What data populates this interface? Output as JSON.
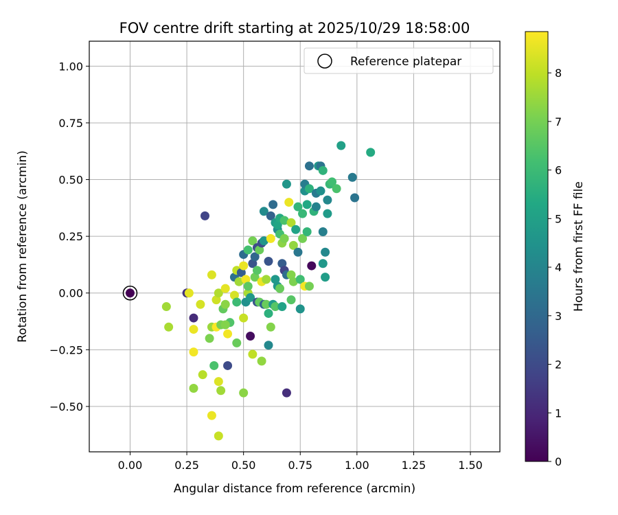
{
  "chart_data": {
    "type": "scatter",
    "title": "FOV centre drift starting at 2025/10/29 18:58:00",
    "xlabel": "Angular distance from reference (arcmin)",
    "ylabel": "Rotation from reference (arcmin)",
    "xlim": [
      -0.18,
      1.63
    ],
    "ylim": [
      -0.7,
      1.11
    ],
    "xticks": [
      0.0,
      0.25,
      0.5,
      0.75,
      1.0,
      1.25,
      1.5
    ],
    "xtick_labels": [
      "0.00",
      "0.25",
      "0.50",
      "0.75",
      "1.00",
      "1.25",
      "1.50"
    ],
    "yticks": [
      -0.5,
      -0.25,
      0.0,
      0.25,
      0.5,
      0.75,
      1.0
    ],
    "ytick_labels": [
      "−0.50",
      "−0.25",
      "0.00",
      "0.25",
      "0.50",
      "0.75",
      "1.00"
    ],
    "grid": true,
    "legend": {
      "position": "top-right",
      "entries": [
        "Reference platepar"
      ]
    },
    "reference_point": {
      "x": 0.0,
      "y": 0.0,
      "c": 0.0
    },
    "colorbar": {
      "label": "Hours from first FF file",
      "range": [
        0,
        8.85
      ],
      "ticks": [
        0,
        1,
        2,
        3,
        4,
        5,
        6,
        7,
        8
      ],
      "tick_labels": [
        "0",
        "1",
        "2",
        "3",
        "4",
        "5",
        "6",
        "7",
        "8"
      ],
      "colormap": "viridis"
    },
    "points": [
      {
        "x": 0.0,
        "y": 0.0,
        "c": 0.0
      },
      {
        "x": 0.25,
        "y": 0.0,
        "c": 1.3
      },
      {
        "x": 0.33,
        "y": 0.34,
        "c": 1.8
      },
      {
        "x": 0.28,
        "y": -0.11,
        "c": 1.1
      },
      {
        "x": 0.43,
        "y": -0.32,
        "c": 2.0
      },
      {
        "x": 0.53,
        "y": -0.19,
        "c": 0.3
      },
      {
        "x": 0.69,
        "y": -0.44,
        "c": 1.2
      },
      {
        "x": 0.8,
        "y": 0.12,
        "c": 0.2
      },
      {
        "x": 0.16,
        "y": -0.06,
        "c": 7.6
      },
      {
        "x": 0.17,
        "y": -0.15,
        "c": 7.7
      },
      {
        "x": 0.26,
        "y": 0.0,
        "c": 8.5
      },
      {
        "x": 0.28,
        "y": -0.16,
        "c": 8.6
      },
      {
        "x": 0.28,
        "y": -0.26,
        "c": 8.7
      },
      {
        "x": 0.28,
        "y": -0.42,
        "c": 7.4
      },
      {
        "x": 0.31,
        "y": -0.05,
        "c": 8.3
      },
      {
        "x": 0.32,
        "y": -0.36,
        "c": 7.9
      },
      {
        "x": 0.35,
        "y": -0.2,
        "c": 7.1
      },
      {
        "x": 0.36,
        "y": -0.15,
        "c": 7.5
      },
      {
        "x": 0.36,
        "y": 0.08,
        "c": 8.4
      },
      {
        "x": 0.36,
        "y": -0.54,
        "c": 8.6
      },
      {
        "x": 0.38,
        "y": -0.15,
        "c": 8.8
      },
      {
        "x": 0.38,
        "y": -0.03,
        "c": 8.2
      },
      {
        "x": 0.39,
        "y": 0.0,
        "c": 7.8
      },
      {
        "x": 0.39,
        "y": -0.39,
        "c": 8.4
      },
      {
        "x": 0.39,
        "y": -0.63,
        "c": 8.1
      },
      {
        "x": 0.4,
        "y": -0.43,
        "c": 7.6
      },
      {
        "x": 0.4,
        "y": -0.14,
        "c": 7.0
      },
      {
        "x": 0.41,
        "y": -0.07,
        "c": 6.7
      },
      {
        "x": 0.42,
        "y": -0.05,
        "c": 7.3
      },
      {
        "x": 0.42,
        "y": 0.02,
        "c": 8.5
      },
      {
        "x": 0.43,
        "y": -0.18,
        "c": 8.7
      },
      {
        "x": 0.44,
        "y": -0.13,
        "c": 6.4
      },
      {
        "x": 0.37,
        "y": -0.32,
        "c": 6.3
      },
      {
        "x": 0.42,
        "y": -0.14,
        "c": 7.2
      },
      {
        "x": 0.46,
        "y": 0.07,
        "c": 3.3
      },
      {
        "x": 0.46,
        "y": -0.01,
        "c": 8.3
      },
      {
        "x": 0.47,
        "y": 0.1,
        "c": 8.0
      },
      {
        "x": 0.47,
        "y": -0.04,
        "c": 6.0
      },
      {
        "x": 0.47,
        "y": -0.22,
        "c": 6.8
      },
      {
        "x": 0.48,
        "y": 0.05,
        "c": 7.6
      },
      {
        "x": 0.49,
        "y": 0.09,
        "c": 2.6
      },
      {
        "x": 0.5,
        "y": 0.12,
        "c": 8.6
      },
      {
        "x": 0.5,
        "y": -0.11,
        "c": 8.1
      },
      {
        "x": 0.5,
        "y": -0.44,
        "c": 7.3
      },
      {
        "x": 0.5,
        "y": 0.17,
        "c": 3.1
      },
      {
        "x": 0.51,
        "y": -0.04,
        "c": 4.4
      },
      {
        "x": 0.51,
        "y": 0.06,
        "c": 8.7
      },
      {
        "x": 0.52,
        "y": 0.0,
        "c": 7.7
      },
      {
        "x": 0.52,
        "y": 0.03,
        "c": 6.6
      },
      {
        "x": 0.52,
        "y": 0.19,
        "c": 6.2
      },
      {
        "x": 0.53,
        "y": -0.02,
        "c": 4.7
      },
      {
        "x": 0.54,
        "y": 0.23,
        "c": 7.0
      },
      {
        "x": 0.54,
        "y": 0.13,
        "c": 2.3
      },
      {
        "x": 0.54,
        "y": -0.27,
        "c": 8.0
      },
      {
        "x": 0.55,
        "y": 0.07,
        "c": 6.9
      },
      {
        "x": 0.55,
        "y": 0.16,
        "c": 2.9
      },
      {
        "x": 0.56,
        "y": 0.1,
        "c": 6.5
      },
      {
        "x": 0.56,
        "y": 0.2,
        "c": 2.0
      },
      {
        "x": 0.56,
        "y": -0.04,
        "c": 2.3
      },
      {
        "x": 0.57,
        "y": -0.04,
        "c": 6.7
      },
      {
        "x": 0.57,
        "y": 0.19,
        "c": 6.8
      },
      {
        "x": 0.58,
        "y": 0.22,
        "c": 2.1
      },
      {
        "x": 0.58,
        "y": -0.3,
        "c": 7.4
      },
      {
        "x": 0.58,
        "y": 0.05,
        "c": 8.6
      },
      {
        "x": 0.59,
        "y": 0.23,
        "c": 4.6
      },
      {
        "x": 0.59,
        "y": 0.36,
        "c": 4.2
      },
      {
        "x": 0.59,
        "y": -0.05,
        "c": 2.8
      },
      {
        "x": 0.6,
        "y": 0.06,
        "c": 7.6
      },
      {
        "x": 0.6,
        "y": -0.05,
        "c": 6.8
      },
      {
        "x": 0.61,
        "y": -0.23,
        "c": 4.1
      },
      {
        "x": 0.61,
        "y": 0.14,
        "c": 2.3
      },
      {
        "x": 0.61,
        "y": -0.09,
        "c": 5.6
      },
      {
        "x": 0.62,
        "y": 0.24,
        "c": 8.7
      },
      {
        "x": 0.62,
        "y": -0.15,
        "c": 7.2
      },
      {
        "x": 0.62,
        "y": 0.34,
        "c": 2.8
      },
      {
        "x": 0.63,
        "y": -0.05,
        "c": 4.8
      },
      {
        "x": 0.63,
        "y": 0.39,
        "c": 3.1
      },
      {
        "x": 0.64,
        "y": 0.06,
        "c": 4.7
      },
      {
        "x": 0.64,
        "y": -0.06,
        "c": 6.5
      },
      {
        "x": 0.64,
        "y": 0.31,
        "c": 4.9
      },
      {
        "x": 0.65,
        "y": 0.03,
        "c": 4.6
      },
      {
        "x": 0.65,
        "y": 0.28,
        "c": 4.2
      },
      {
        "x": 0.65,
        "y": 0.3,
        "c": 5.2
      },
      {
        "x": 0.66,
        "y": 0.02,
        "c": 6.8
      },
      {
        "x": 0.66,
        "y": 0.26,
        "c": 6.2
      },
      {
        "x": 0.66,
        "y": 0.33,
        "c": 5.4
      },
      {
        "x": 0.67,
        "y": 0.13,
        "c": 2.6
      },
      {
        "x": 0.67,
        "y": 0.22,
        "c": 7.3
      },
      {
        "x": 0.67,
        "y": -0.06,
        "c": 5.1
      },
      {
        "x": 0.68,
        "y": 0.24,
        "c": 7.1
      },
      {
        "x": 0.68,
        "y": 0.32,
        "c": 6.3
      },
      {
        "x": 0.68,
        "y": 0.1,
        "c": 1.8
      },
      {
        "x": 0.69,
        "y": 0.08,
        "c": 3.2
      },
      {
        "x": 0.69,
        "y": 0.48,
        "c": 4.6
      },
      {
        "x": 0.7,
        "y": 0.4,
        "c": 8.6
      },
      {
        "x": 0.71,
        "y": 0.31,
        "c": 7.8
      },
      {
        "x": 0.71,
        "y": 0.08,
        "c": 7.2
      },
      {
        "x": 0.71,
        "y": -0.03,
        "c": 6.5
      },
      {
        "x": 0.72,
        "y": 0.05,
        "c": 7.1
      },
      {
        "x": 0.72,
        "y": 0.21,
        "c": 7.4
      },
      {
        "x": 0.73,
        "y": 0.28,
        "c": 5.1
      },
      {
        "x": 0.74,
        "y": 0.18,
        "c": 3.5
      },
      {
        "x": 0.74,
        "y": 0.38,
        "c": 5.8
      },
      {
        "x": 0.75,
        "y": -0.07,
        "c": 4.5
      },
      {
        "x": 0.75,
        "y": 0.06,
        "c": 6.1
      },
      {
        "x": 0.76,
        "y": 0.24,
        "c": 7.0
      },
      {
        "x": 0.76,
        "y": 0.35,
        "c": 5.9
      },
      {
        "x": 0.77,
        "y": 0.03,
        "c": 8.7
      },
      {
        "x": 0.77,
        "y": 0.45,
        "c": 4.4
      },
      {
        "x": 0.77,
        "y": 0.48,
        "c": 3.7
      },
      {
        "x": 0.78,
        "y": 0.39,
        "c": 5.3
      },
      {
        "x": 0.78,
        "y": 0.27,
        "c": 5.8
      },
      {
        "x": 0.79,
        "y": 0.56,
        "c": 3.3
      },
      {
        "x": 0.79,
        "y": 0.46,
        "c": 5.6
      },
      {
        "x": 0.79,
        "y": 0.03,
        "c": 7.0
      },
      {
        "x": 0.81,
        "y": 0.36,
        "c": 5.7
      },
      {
        "x": 0.82,
        "y": 0.44,
        "c": 3.6
      },
      {
        "x": 0.82,
        "y": 0.38,
        "c": 3.9
      },
      {
        "x": 0.83,
        "y": 0.56,
        "c": 4.6
      },
      {
        "x": 0.84,
        "y": 0.45,
        "c": 4.4
      },
      {
        "x": 0.84,
        "y": 0.56,
        "c": 3.4
      },
      {
        "x": 0.85,
        "y": 0.27,
        "c": 3.8
      },
      {
        "x": 0.85,
        "y": 0.13,
        "c": 4.7
      },
      {
        "x": 0.85,
        "y": 0.54,
        "c": 5.7
      },
      {
        "x": 0.86,
        "y": 0.18,
        "c": 4.1
      },
      {
        "x": 0.86,
        "y": 0.07,
        "c": 4.9
      },
      {
        "x": 0.87,
        "y": 0.41,
        "c": 4.1
      },
      {
        "x": 0.87,
        "y": 0.35,
        "c": 4.8
      },
      {
        "x": 0.88,
        "y": 0.48,
        "c": 5.9
      },
      {
        "x": 0.89,
        "y": 0.49,
        "c": 6.1
      },
      {
        "x": 0.91,
        "y": 0.46,
        "c": 6.3
      },
      {
        "x": 0.93,
        "y": 0.65,
        "c": 5.0
      },
      {
        "x": 0.98,
        "y": 0.51,
        "c": 3.6
      },
      {
        "x": 0.99,
        "y": 0.42,
        "c": 3.4
      },
      {
        "x": 1.06,
        "y": 0.62,
        "c": 5.4
      }
    ]
  }
}
